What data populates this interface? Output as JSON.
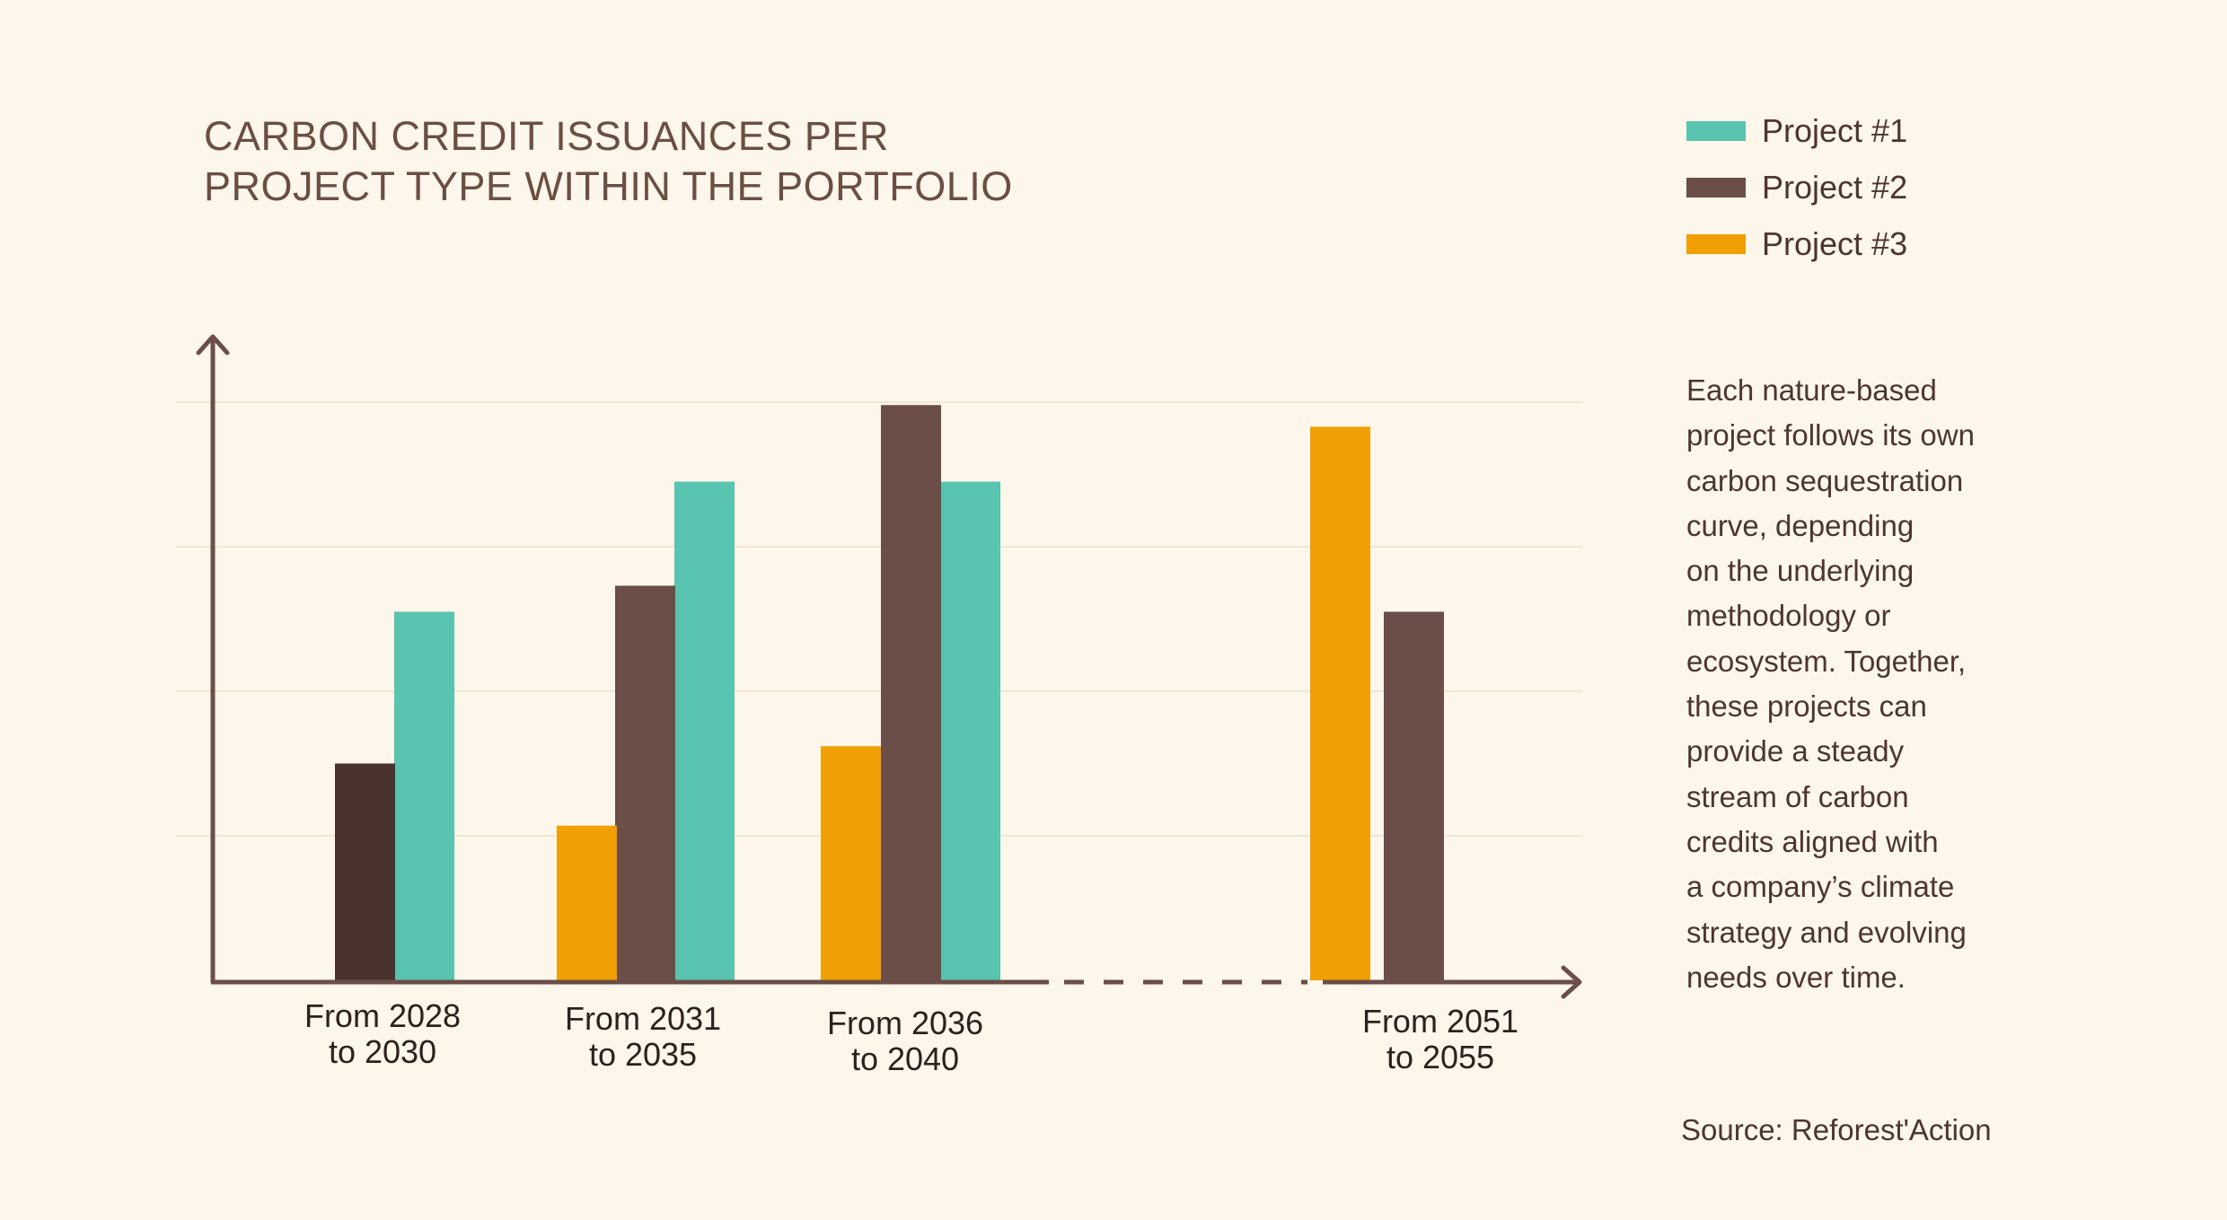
{
  "title_lines": [
    "CARBON CREDIT ISSUANCES PER",
    "PROJECT TYPE WITHIN THE PORTFOLIO"
  ],
  "legend": [
    {
      "label": "Project #1",
      "color": "#59c4b0"
    },
    {
      "label": "Project #2",
      "color": "#6b4e48"
    },
    {
      "label": "Project #3",
      "color": "#f0a004"
    }
  ],
  "description_lines": [
    "Each nature-based",
    "project follows its own",
    "carbon sequestration",
    "curve, depending",
    "on the underlying",
    "methodology or",
    "ecosystem. Together,",
    "these projects can",
    "provide a steady",
    "stream of carbon",
    "credits aligned with",
    "a company’s climate",
    "strategy and evolving",
    "needs over time."
  ],
  "source": "Source: Reforest'Action",
  "chart_data": {
    "type": "bar",
    "title": "CARBON CREDIT ISSUANCES PER PROJECT TYPE WITHIN THE PORTFOLIO",
    "xlabel": "",
    "ylabel": "",
    "ylim": [
      0,
      4
    ],
    "grid": true,
    "legend_position": "top-right",
    "categories": [
      [
        "From 2028",
        "to 2030"
      ],
      [
        "From 2031",
        "to 2035"
      ],
      [
        "From 2036",
        "to 2040"
      ],
      [
        "From 2051",
        "to 2055"
      ]
    ],
    "series": [
      {
        "name": "Project #1",
        "values": [
          2.55,
          3.45,
          3.45,
          null
        ]
      },
      {
        "name": "Project #2",
        "values": [
          1.5,
          2.73,
          3.98,
          2.55
        ]
      },
      {
        "name": "Project #3",
        "values": [
          null,
          1.07,
          1.62,
          3.83
        ]
      }
    ],
    "colors": {
      "project_1": "#59c4b0",
      "project_2": "#6b4e48",
      "project_2_first_bar": "#4a322e",
      "project_3": "#f0a004",
      "axis": "#6b4e48",
      "grid": "#ece0cc"
    }
  }
}
